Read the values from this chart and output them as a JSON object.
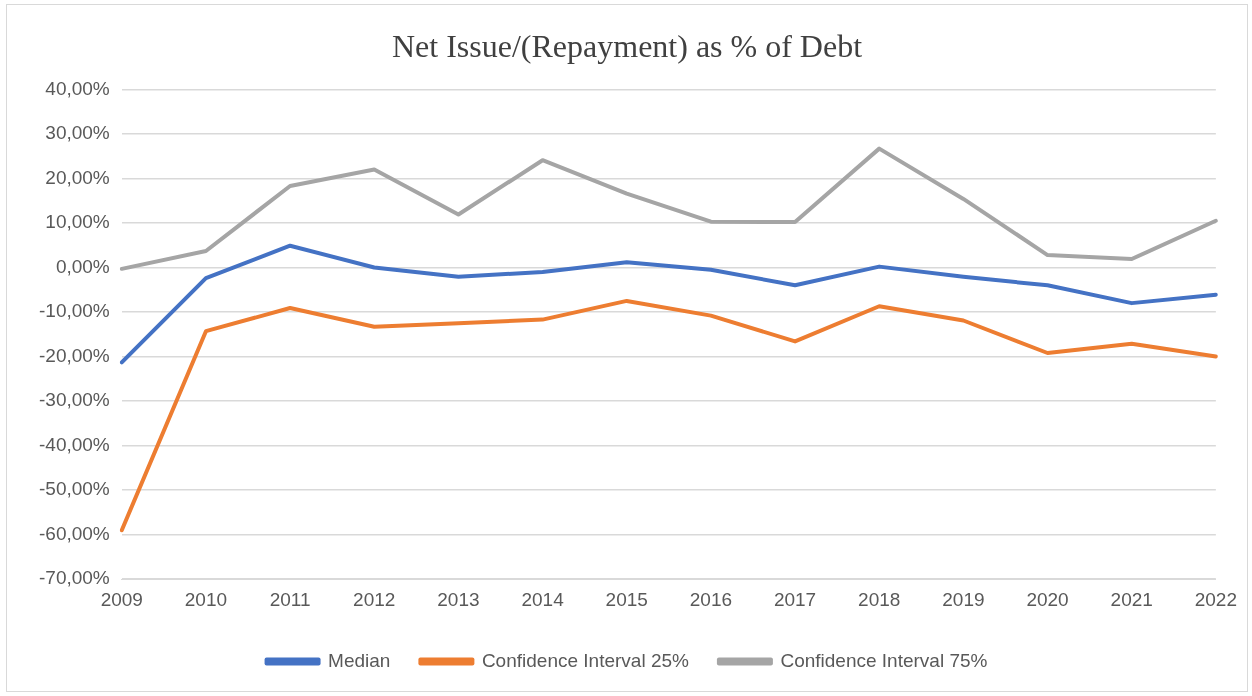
{
  "chart_data": {
    "type": "line",
    "title": "Net Issue/(Repayment) as % of Debt",
    "categories": [
      "2009",
      "2010",
      "2011",
      "2012",
      "2013",
      "2014",
      "2015",
      "2016",
      "2017",
      "2018",
      "2019",
      "2020",
      "2021",
      "2022"
    ],
    "series": [
      {
        "name": "Median",
        "color": "#4472c4",
        "values": [
          -21.3,
          -2.4,
          4.9,
          0,
          -2.1,
          -1,
          1.2,
          -0.5,
          -4,
          0.2,
          -2.1,
          -4,
          -8,
          -6.1
        ]
      },
      {
        "name": "Confidence Interval 25%",
        "color": "#ed7d31",
        "values": [
          -59,
          -14.3,
          -9.1,
          -13.3,
          -12.5,
          -11.7,
          -7.5,
          -10.8,
          -16.6,
          -8.7,
          -11.9,
          -19.2,
          -17.1,
          -20
        ]
      },
      {
        "name": "Confidence Interval 75%",
        "color": "#a5a5a5",
        "values": [
          -0.3,
          3.7,
          18.3,
          22,
          11.9,
          24.1,
          16.6,
          10.3,
          10.2,
          26.7,
          15.4,
          2.8,
          1.9,
          10.5
        ]
      }
    ],
    "ylim": [
      -70,
      40
    ],
    "yticks": [
      {
        "value": -70,
        "label": "-70,00%"
      },
      {
        "value": -60,
        "label": "-60,00%"
      },
      {
        "value": -50,
        "label": "-50,00%"
      },
      {
        "value": -40,
        "label": "-40,00%"
      },
      {
        "value": -30,
        "label": "-30,00%"
      },
      {
        "value": -20,
        "label": "-20,00%"
      },
      {
        "value": -10,
        "label": "-10,00%"
      },
      {
        "value": 0,
        "label": "0,00%"
      },
      {
        "value": 10,
        "label": "10,00%"
      },
      {
        "value": 20,
        "label": "20,00%"
      },
      {
        "value": 30,
        "label": "30,00%"
      },
      {
        "value": 40,
        "label": "40,00%"
      }
    ],
    "grid": "y",
    "legend": "bottom",
    "marker": "none",
    "line_style": "solid"
  }
}
